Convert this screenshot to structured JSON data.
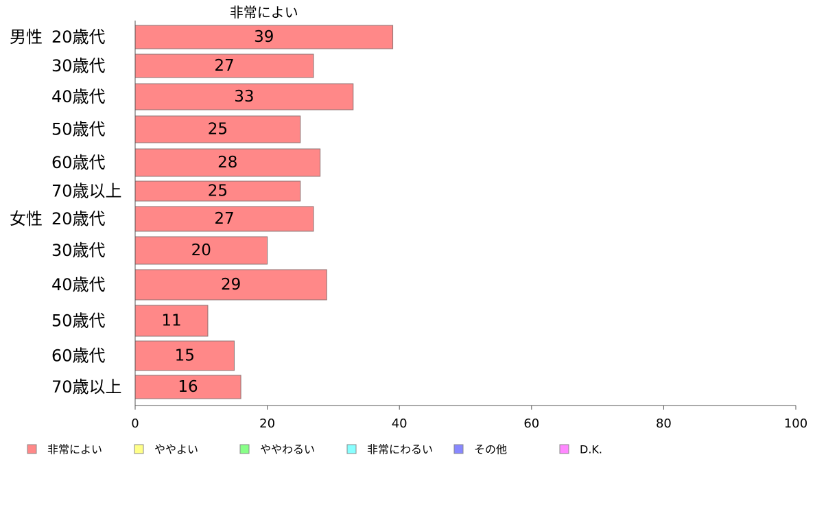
{
  "chart_data": {
    "type": "bar",
    "orientation": "horizontal",
    "series_label": "非常によい",
    "groups": [
      {
        "label": "男性",
        "start": 0
      },
      {
        "label": "女性",
        "start": 6
      }
    ],
    "categories": [
      "20歳代",
      "30歳代",
      "40歳代",
      "50歳代",
      "60歳代",
      "70歳以上",
      "20歳代",
      "30歳代",
      "40歳代",
      "50歳代",
      "60歳代",
      "70歳以上"
    ],
    "series": [
      {
        "name": "非常によい",
        "color": "#ff8888",
        "values": [
          39,
          27,
          33,
          25,
          28,
          25,
          27,
          20,
          29,
          11,
          15,
          16
        ]
      }
    ],
    "xlim": [
      0,
      100
    ],
    "xticks": [
      0,
      20,
      40,
      60,
      80,
      100
    ],
    "grid": false,
    "legend_position": "bottom",
    "legend": [
      {
        "label": "非常によい",
        "color": "#ff8888"
      },
      {
        "label": "ややよい",
        "color": "#ffff88"
      },
      {
        "label": "ややわるい",
        "color": "#88ff88"
      },
      {
        "label": "非常にわるい",
        "color": "#88ffff"
      },
      {
        "label": "その他",
        "color": "#8888ff"
      },
      {
        "label": "D.K.",
        "color": "#ff88ff"
      }
    ]
  }
}
